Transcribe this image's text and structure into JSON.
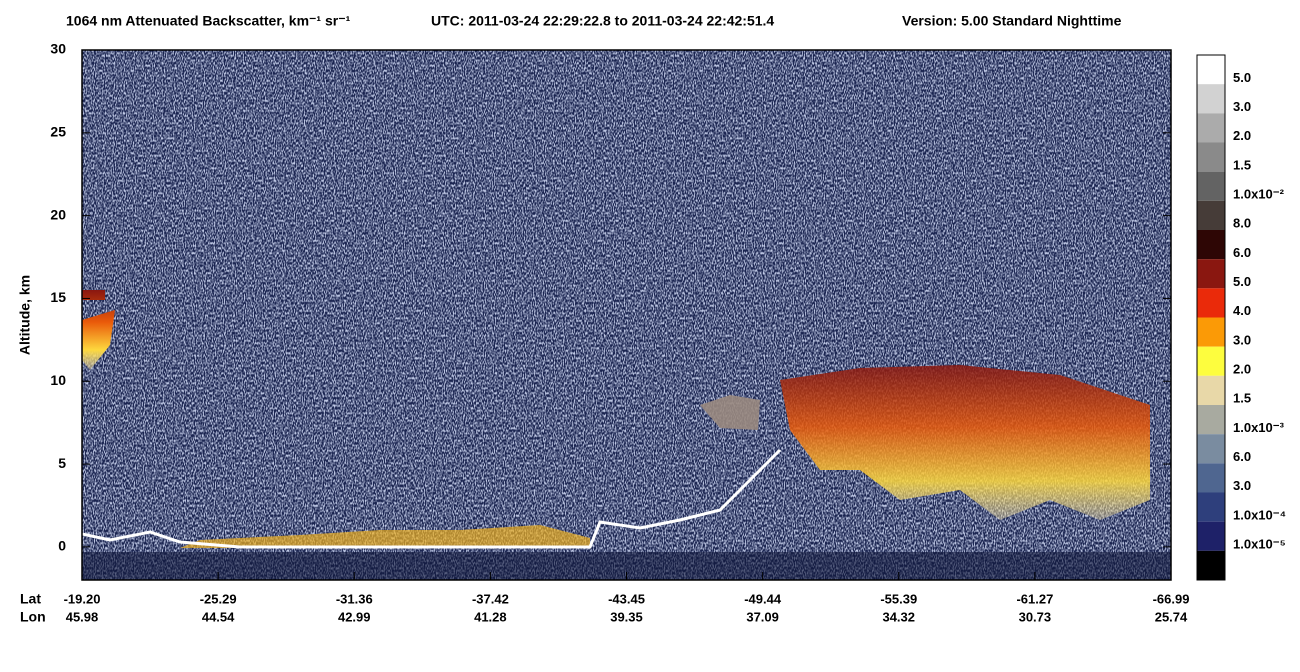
{
  "chart_data": {
    "type": "curtain",
    "title": "1064 nm Attenuated Backscatter, km⁻¹ sr⁻¹",
    "subtitle": "UTC:  2011-03-24 22:29:22.8  to  2011-03-24 22:42:51.4",
    "version": "Version: 5.00  Standard  Nighttime",
    "y_label": "Altitude, km",
    "ylim": [
      -2,
      30
    ],
    "yticks": [
      0,
      5,
      10,
      15,
      20,
      25,
      30
    ],
    "x_row_labels": [
      "Lat",
      "Lon"
    ],
    "lat": [
      "-19.20",
      "-25.29",
      "-31.36",
      "-37.42",
      "-43.45",
      "-49.44",
      "-55.39",
      "-61.27",
      "-66.99"
    ],
    "lon": [
      "45.98",
      "44.54",
      "42.99",
      "41.28",
      "39.35",
      "37.09",
      "34.32",
      "30.73",
      "25.74"
    ],
    "colorbar": {
      "colors": [
        "#ffffff",
        "#d2d2d2",
        "#ababab",
        "#8a8a8a",
        "#636363",
        "#463c38",
        "#2e0605",
        "#8a1710",
        "#ea2a0a",
        "#fb9a06",
        "#fdfd3e",
        "#e8d8a8",
        "#a8aaa0",
        "#7a8ca0",
        "#4f6690",
        "#2e3f7c",
        "#1e2168",
        "#000000"
      ],
      "labels": [
        "5.0",
        "3.0",
        "2.0",
        "1.5",
        "1.0x10⁻²",
        "8.0",
        "6.0",
        "5.0",
        "4.0",
        "3.0",
        "2.0",
        "1.5",
        "1.0x10⁻³",
        "6.0",
        "3.0",
        "1.0x10⁻⁴",
        "1.0x10⁻⁵"
      ]
    }
  }
}
